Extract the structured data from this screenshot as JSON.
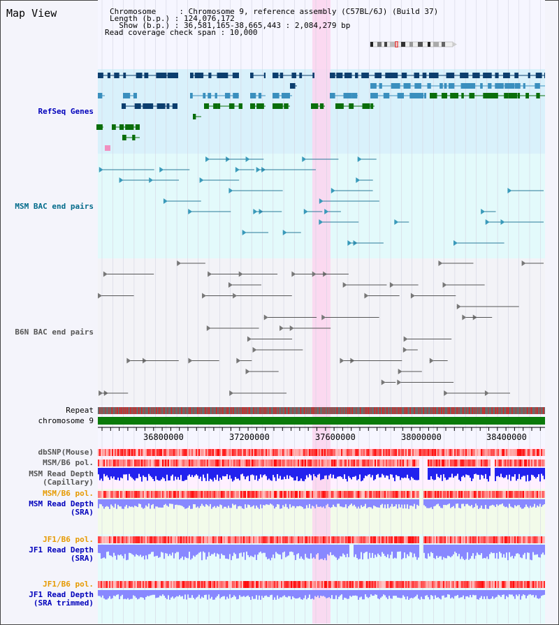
{
  "header": {
    "title": "Map View",
    "info_lines": [
      "Chromosome     : Chromosome 9, reference assembly (C57BL/6J) (Build 37)",
      "Length (b.p.) : 124,076,172",
      "  Show (b.p.) : 36,581,165-38,665,443 : 2,084,279 bp",
      "Read coverage check span : 10,000"
    ]
  },
  "tracks": {
    "refseq": {
      "label": "RefSeq Genes",
      "color": "#0000bb"
    },
    "msm_bac": {
      "label": "MSM BAC end pairs",
      "color": "#006a8a"
    },
    "b6n_bac": {
      "label": "B6N BAC end pairs",
      "color": "#555555"
    },
    "repeat": {
      "label": "Repeat"
    },
    "chromosome": {
      "label": "chromosome 9",
      "color": "#008800"
    },
    "ticks": [
      "36800000",
      "37200000",
      "37600000",
      "38000000",
      "38400000"
    ],
    "dbsnp": {
      "label": "dbSNP(Mouse)",
      "color": "#555555"
    },
    "msm_b6_pol_1": {
      "label": "MSM/B6 pol.",
      "color": "#555555"
    },
    "msm_depth_cap": {
      "label_1": "MSM Read Depth",
      "label_2": "(Capillary)",
      "color": "#555555"
    },
    "msm_b6_pol_2": {
      "label": "MSM/B6 pol.",
      "color": "#e69a00"
    },
    "msm_depth_sra": {
      "label_1": "MSM Read Depth",
      "label_2": "(SRA)",
      "color": "#0000bb"
    },
    "jf1_b6_pol_1": {
      "label": "JF1/B6 pol.",
      "color": "#e69a00"
    },
    "jf1_depth_sra": {
      "label_1": "JF1 Read Depth",
      "label_2": "(SRA)",
      "color": "#0000bb"
    },
    "jf1_b6_pol_2": {
      "label": "JF1/B6 pol.",
      "color": "#e69a00"
    },
    "jf1_depth_trim": {
      "label_1": "JF1 Read Depth",
      "label_2": "(SRA trimmed)",
      "color": "#0000bb"
    }
  },
  "colors": {
    "highlight": "#fbd3ee",
    "refseq_dark": "#0c3e6e",
    "refseq_mid": "#3a8fbe",
    "refseq_green": "#0a6e0a",
    "depth_blue": "#2222ee",
    "depth_light": "#8888ff"
  }
}
